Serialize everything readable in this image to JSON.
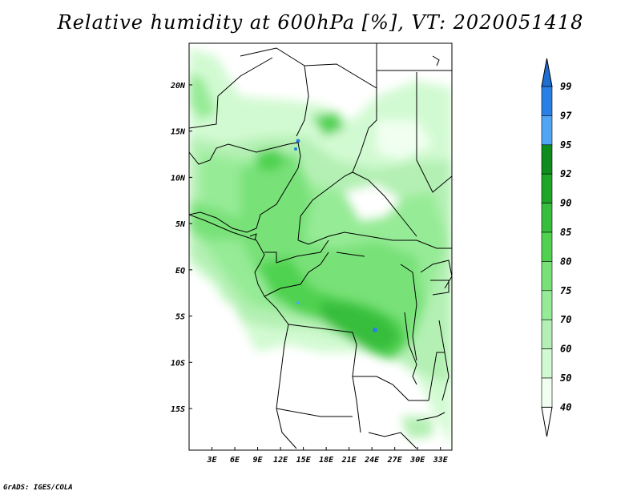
{
  "title": "Relative humidity at 600hPa [%], VT: 2020051418",
  "credit": "GrADS: IGES/COLA",
  "map": {
    "lon_range": [
      0,
      34.5
    ],
    "lat_range": [
      -19.5,
      24.5
    ],
    "x_ticks": [
      "3E",
      "6E",
      "9E",
      "12E",
      "15E",
      "18E",
      "21E",
      "24E",
      "27E",
      "30E",
      "33E"
    ],
    "x_tick_values": [
      3,
      6,
      9,
      12,
      15,
      18,
      21,
      24,
      27,
      30,
      33
    ],
    "y_ticks": [
      "20N",
      "15N",
      "10N",
      "5N",
      "EQ",
      "5S",
      "10S",
      "15S"
    ],
    "y_tick_values": [
      20,
      15,
      10,
      5,
      0,
      -5,
      -10,
      -15
    ]
  },
  "colorbar": {
    "levels": [
      "99",
      "97",
      "95",
      "92",
      "90",
      "85",
      "80",
      "75",
      "70",
      "60",
      "50",
      "40"
    ],
    "colors": [
      "#1e6ed2",
      "#2880e6",
      "#50a5f5",
      "#0f8c1e",
      "#1ea528",
      "#37be3c",
      "#50d250",
      "#78e178",
      "#96eb96",
      "#b4f0b4",
      "#d2fad2",
      "#f0fff0"
    ],
    "lowest_color": "#ffffff"
  }
}
